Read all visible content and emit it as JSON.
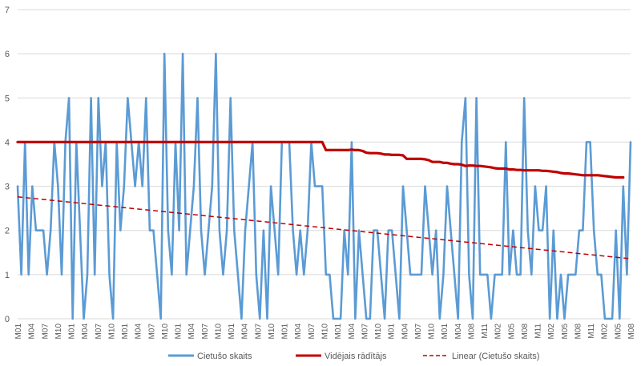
{
  "chart_data": {
    "type": "line",
    "title": "",
    "xlabel": "",
    "ylabel": "",
    "ylim": [
      0,
      7
    ],
    "yticks": [
      0,
      1,
      2,
      3,
      4,
      5,
      6,
      7
    ],
    "grid": "horizontal",
    "legend_position": "bottom",
    "x_tick_labels": [
      "M01",
      "M04",
      "M07",
      "M10",
      "M01",
      "M04",
      "M07",
      "M10",
      "M01",
      "M04",
      "M07",
      "M10",
      "M01",
      "M04",
      "M07",
      "M10",
      "M01",
      "M04",
      "M07",
      "M10",
      "M01",
      "M04",
      "M07",
      "M10",
      "M01",
      "M04",
      "M07",
      "M10",
      "M01",
      "M04",
      "M07",
      "M10",
      "M01",
      "M04",
      "M08",
      "M11",
      "M02",
      "M05",
      "M08",
      "M11",
      "M02",
      "M05",
      "M08",
      "M11",
      "M02",
      "M05",
      "M08"
    ],
    "series": [
      {
        "name": "Cietušo skaits",
        "color": "#5b9bd5",
        "style": "solid",
        "values": [
          3,
          1,
          4,
          1,
          3,
          2,
          2,
          2,
          1,
          2,
          4,
          3,
          1,
          4,
          5,
          0,
          4,
          2,
          0,
          1,
          5,
          1,
          5,
          3,
          4,
          1,
          0,
          4,
          2,
          3,
          5,
          4,
          3,
          4,
          3,
          5,
          2,
          2,
          1,
          0,
          6,
          2,
          1,
          4,
          2,
          6,
          1,
          2,
          3,
          5,
          2,
          1,
          2,
          3,
          6,
          2,
          1,
          2,
          5,
          2,
          1,
          0,
          2,
          3,
          4,
          1,
          0,
          2,
          0,
          3,
          2,
          1,
          4,
          4,
          4,
          2,
          1,
          2,
          1,
          2,
          4,
          3,
          3,
          3,
          1,
          1,
          0,
          0,
          0,
          2,
          1,
          4,
          0,
          2,
          1,
          0,
          0,
          2,
          2,
          1,
          0,
          2,
          2,
          1,
          0,
          3,
          2,
          1,
          1,
          1,
          1,
          3,
          2,
          1,
          2,
          0,
          1,
          3,
          2,
          1,
          0,
          4,
          5,
          1,
          0,
          5,
          1,
          1,
          1,
          0,
          1,
          1,
          1,
          4,
          1,
          2,
          1,
          1,
          5,
          2,
          1,
          3,
          2,
          2,
          3,
          0,
          2,
          0,
          1,
          0,
          1,
          1,
          1,
          2,
          2,
          4,
          4,
          2,
          1,
          1,
          0,
          0,
          0,
          2,
          0,
          3,
          1,
          4
        ]
      },
      {
        "name": "Vidējais rādītājs",
        "color": "#c00000",
        "style": "solid",
        "values": [
          4,
          4,
          4,
          4,
          4,
          4,
          4,
          4,
          4,
          4,
          4,
          4,
          4,
          4,
          4,
          4,
          4,
          4,
          4,
          4,
          4,
          4,
          4,
          4,
          4,
          4,
          4,
          4,
          4,
          4,
          4,
          4,
          4,
          4,
          4,
          4,
          4,
          4,
          4,
          4,
          4,
          4,
          4,
          4,
          4,
          4,
          4,
          4,
          4,
          4,
          4,
          4,
          4,
          4,
          4,
          4,
          4,
          4,
          4,
          4,
          4,
          4,
          4,
          4,
          4,
          4,
          4,
          4,
          4,
          4,
          4,
          4,
          4,
          4,
          4,
          4,
          4,
          4,
          4,
          4,
          4,
          4,
          4,
          4,
          3.82,
          3.82,
          3.82,
          3.82,
          3.82,
          3.82,
          3.82,
          3.83,
          3.82,
          3.82,
          3.8,
          3.76,
          3.75,
          3.75,
          3.75,
          3.74,
          3.72,
          3.72,
          3.71,
          3.71,
          3.71,
          3.7,
          3.62,
          3.62,
          3.62,
          3.62,
          3.62,
          3.61,
          3.59,
          3.55,
          3.55,
          3.55,
          3.53,
          3.53,
          3.51,
          3.5,
          3.5,
          3.49,
          3.46,
          3.47,
          3.47,
          3.46,
          3.46,
          3.45,
          3.44,
          3.43,
          3.41,
          3.4,
          3.4,
          3.4,
          3.38,
          3.38,
          3.37,
          3.37,
          3.36,
          3.36,
          3.36,
          3.36,
          3.36,
          3.35,
          3.35,
          3.34,
          3.33,
          3.32,
          3.3,
          3.29,
          3.29,
          3.28,
          3.27,
          3.26,
          3.25,
          3.25,
          3.25,
          3.25,
          3.25,
          3.24,
          3.23,
          3.22,
          3.21,
          3.2,
          3.2,
          3.2
        ]
      },
      {
        "name": "Linear (Cietušo skaits)",
        "color": "#c00000",
        "style": "dashed",
        "trend": {
          "start": 2.76,
          "end": 1.36
        }
      }
    ]
  }
}
